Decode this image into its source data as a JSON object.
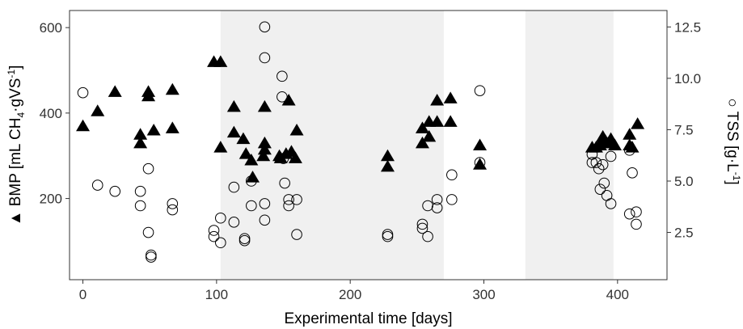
{
  "chart_data": {
    "type": "scatter",
    "xlabel": "Experimental time [days]",
    "ylabel_left": {
      "marker": "▲",
      "pre": " BMP [mL CH",
      "sub1": "4",
      "mid": "·gVS",
      "sup": "-1",
      "post": "]"
    },
    "ylabel_right": {
      "marker": "○",
      "pre": " TSS [g·L",
      "sup": "-1",
      "post": "]"
    },
    "x_ticks": [
      0,
      100,
      200,
      300,
      400
    ],
    "y_left_ticks": [
      200,
      400,
      600
    ],
    "y_right_ticks": [
      "2.5",
      "5.0",
      "7.5",
      "10.0",
      "12.5"
    ],
    "xlim": [
      -10,
      437
    ],
    "y_left_lim": [
      10,
      640
    ],
    "y_right_lim": [
      0.2,
      13.3
    ],
    "shaded_periods": [
      [
        103,
        270
      ],
      [
        331,
        397
      ]
    ],
    "grid": false,
    "colors": {
      "marker": "#000000",
      "shade": "#f0f0f0",
      "axis": "#333333"
    },
    "series": [
      {
        "name": "BMP",
        "axis": "left",
        "marker": "filled-triangle",
        "points": [
          [
            0,
            370
          ],
          [
            11,
            405
          ],
          [
            24,
            450
          ],
          [
            43,
            350
          ],
          [
            43,
            330
          ],
          [
            49,
            450
          ],
          [
            49,
            440
          ],
          [
            53,
            360
          ],
          [
            67,
            455
          ],
          [
            67,
            365
          ],
          [
            98,
            520
          ],
          [
            103,
            520
          ],
          [
            103,
            320
          ],
          [
            113,
            415
          ],
          [
            113,
            355
          ],
          [
            120,
            340
          ],
          [
            122,
            305
          ],
          [
            126,
            290
          ],
          [
            127,
            250
          ],
          [
            135,
            300
          ],
          [
            136,
            415
          ],
          [
            136,
            330
          ],
          [
            136,
            315
          ],
          [
            147,
            300
          ],
          [
            148,
            295
          ],
          [
            152,
            305
          ],
          [
            154,
            430
          ],
          [
            156,
            310
          ],
          [
            159,
            295
          ],
          [
            160,
            360
          ],
          [
            228,
            300
          ],
          [
            228,
            275
          ],
          [
            254,
            365
          ],
          [
            254,
            330
          ],
          [
            259,
            380
          ],
          [
            259,
            345
          ],
          [
            265,
            430
          ],
          [
            265,
            380
          ],
          [
            275,
            435
          ],
          [
            275,
            380
          ],
          [
            297,
            325
          ],
          [
            297,
            280
          ],
          [
            381,
            320
          ],
          [
            384,
            320
          ],
          [
            387,
            325
          ],
          [
            388,
            335
          ],
          [
            389,
            345
          ],
          [
            391,
            335
          ],
          [
            393,
            330
          ],
          [
            395,
            340
          ],
          [
            398,
            325
          ],
          [
            409,
            350
          ],
          [
            409,
            325
          ],
          [
            411,
            320
          ],
          [
            415,
            375
          ]
        ]
      },
      {
        "name": "TSS",
        "axis": "right",
        "marker": "open-circle",
        "points": [
          [
            0,
            9.3
          ],
          [
            11,
            4.8
          ],
          [
            24,
            4.5
          ],
          [
            43,
            4.5
          ],
          [
            43,
            3.8
          ],
          [
            49,
            5.6
          ],
          [
            49,
            2.5
          ],
          [
            51,
            1.4
          ],
          [
            51,
            1.3
          ],
          [
            67,
            3.6
          ],
          [
            67,
            3.9
          ],
          [
            98,
            2.6
          ],
          [
            98,
            2.3
          ],
          [
            103,
            2.0
          ],
          [
            103,
            3.2
          ],
          [
            113,
            4.7
          ],
          [
            113,
            3.0
          ],
          [
            121,
            2.2
          ],
          [
            121,
            2.1
          ],
          [
            126,
            5.0
          ],
          [
            126,
            3.8
          ],
          [
            136,
            12.5
          ],
          [
            136,
            11.0
          ],
          [
            136,
            3.9
          ],
          [
            136,
            3.1
          ],
          [
            149,
            10.1
          ],
          [
            149,
            9.1
          ],
          [
            150,
            6.1
          ],
          [
            151,
            4.9
          ],
          [
            154,
            3.8
          ],
          [
            154,
            4.1
          ],
          [
            160,
            4.1
          ],
          [
            160,
            2.4
          ],
          [
            228,
            2.4
          ],
          [
            228,
            2.3
          ],
          [
            254,
            2.9
          ],
          [
            254,
            2.7
          ],
          [
            258,
            2.3
          ],
          [
            258,
            3.8
          ],
          [
            265,
            4.1
          ],
          [
            265,
            3.7
          ],
          [
            276,
            5.3
          ],
          [
            276,
            4.1
          ],
          [
            297,
            9.4
          ],
          [
            297,
            5.9
          ],
          [
            381,
            6.3
          ],
          [
            381,
            5.9
          ],
          [
            384,
            5.9
          ],
          [
            386,
            5.6
          ],
          [
            387,
            4.6
          ],
          [
            389,
            5.8
          ],
          [
            390,
            4.9
          ],
          [
            392,
            4.3
          ],
          [
            395,
            6.2
          ],
          [
            395,
            3.9
          ],
          [
            409,
            6.5
          ],
          [
            409,
            3.4
          ],
          [
            411,
            5.4
          ],
          [
            414,
            3.5
          ],
          [
            414,
            2.9
          ]
        ]
      }
    ]
  }
}
